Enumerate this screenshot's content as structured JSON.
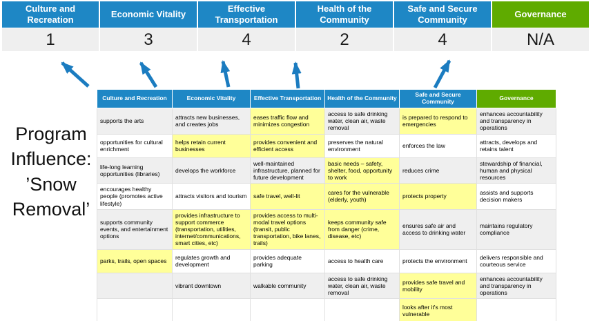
{
  "title": "Program Influence: ’Snow Removal’",
  "colors": {
    "header_blue": "#1E87C5",
    "governance_green": "#5FAB00",
    "score_row_gray": "#EFEFEF",
    "highlight_yellow": "#FFFF99",
    "arrow_blue": "#1B7CC0"
  },
  "summary": {
    "columns": [
      {
        "label": "Culture and Recreation",
        "score": "1",
        "header_bg": "#1E87C5"
      },
      {
        "label": "Economic Vitality",
        "score": "3",
        "header_bg": "#1E87C5"
      },
      {
        "label": "Effective Transportation",
        "score": "4",
        "header_bg": "#1E87C5"
      },
      {
        "label": "Health of the Community",
        "score": "2",
        "header_bg": "#1E87C5"
      },
      {
        "label": "Safe and Secure Community",
        "score": "4",
        "header_bg": "#1E87C5"
      },
      {
        "label": "Governance",
        "score": "N/A",
        "header_bg": "#5FAB00"
      }
    ]
  },
  "matrix": {
    "headers": [
      {
        "label": "Culture and Recreation",
        "bg": "#1E87C5"
      },
      {
        "label": "Economic Vitality",
        "bg": "#1E87C5"
      },
      {
        "label": "Effective Transportation",
        "bg": "#1E87C5"
      },
      {
        "label": "Health of the Community",
        "bg": "#1E87C5"
      },
      {
        "label": "Safe and Secure Community",
        "bg": "#1E87C5"
      },
      {
        "label": "Governance",
        "bg": "#5FAB00"
      }
    ],
    "rows": [
      [
        {
          "text": "supports the arts",
          "highlight": false
        },
        {
          "text": "attracts new businesses, and creates jobs",
          "highlight": false
        },
        {
          "text": "eases traffic flow and minimizes congestion",
          "highlight": true
        },
        {
          "text": "access to safe drinking water, clean air, waste removal",
          "highlight": false
        },
        {
          "text": "is prepared to respond to emergencies",
          "highlight": true
        },
        {
          "text": "enhances accountability and transparency in operations",
          "highlight": false
        }
      ],
      [
        {
          "text": "opportunities for cultural enrichment",
          "highlight": false
        },
        {
          "text": "helps retain current businesses",
          "highlight": true
        },
        {
          "text": "provides convenient and efficient access",
          "highlight": true
        },
        {
          "text": "preserves the natural environment",
          "highlight": false
        },
        {
          "text": "enforces the law",
          "highlight": false
        },
        {
          "text": "attracts, develops and retains talent",
          "highlight": false
        }
      ],
      [
        {
          "text": "life-long learning opportunities (libraries)",
          "highlight": false
        },
        {
          "text": "develops the workforce",
          "highlight": false
        },
        {
          "text": "well-maintained infrastructure, planned for future development",
          "highlight": false
        },
        {
          "text": "basic needs – safety, shelter, food, opportunity to work",
          "highlight": true
        },
        {
          "text": "reduces crime",
          "highlight": false
        },
        {
          "text": "stewardship of financial, human and physical resources",
          "highlight": false
        }
      ],
      [
        {
          "text": "encourages healthy people (promotes active lifestyle)",
          "highlight": false
        },
        {
          "text": "attracts visitors and tourism",
          "highlight": false
        },
        {
          "text": "safe travel, well-lit",
          "highlight": true
        },
        {
          "text": "cares for the vulnerable (elderly, youth)",
          "highlight": true
        },
        {
          "text": "protects property",
          "highlight": true
        },
        {
          "text": "assists and supports decision makers",
          "highlight": false
        }
      ],
      [
        {
          "text": "supports community events, and entertainment options",
          "highlight": false
        },
        {
          "text": "provides infrastructure to support commerce (transportation, utilities, internet/communications, smart cities, etc)",
          "highlight": true
        },
        {
          "text": "provides access to multi-modal travel options (transit, public transportation, bike lanes, trails)",
          "highlight": true
        },
        {
          "text": "keeps community safe from danger (crime, disease, etc)",
          "highlight": true
        },
        {
          "text": "ensures safe air and access to drinking water",
          "highlight": false
        },
        {
          "text": "maintains regulatory compliance",
          "highlight": false
        }
      ],
      [
        {
          "text": "parks, trails, open spaces",
          "highlight": true
        },
        {
          "text": "regulates growth and development",
          "highlight": false
        },
        {
          "text": "provides adequate parking",
          "highlight": false
        },
        {
          "text": "access to health care",
          "highlight": false
        },
        {
          "text": "protects the environment",
          "highlight": false
        },
        {
          "text": "delivers responsible and courteous service",
          "highlight": false
        }
      ],
      [
        {
          "text": "",
          "highlight": false
        },
        {
          "text": "vibrant downtown",
          "highlight": false
        },
        {
          "text": "walkable community",
          "highlight": false
        },
        {
          "text": "access to safe drinking water, clean air, waste removal",
          "highlight": false
        },
        {
          "text": "provides safe travel and mobility",
          "highlight": true
        },
        {
          "text": "enhances accountability and transparency in operations",
          "highlight": false
        }
      ],
      [
        {
          "text": "",
          "highlight": false
        },
        {
          "text": "",
          "highlight": false
        },
        {
          "text": "",
          "highlight": false
        },
        {
          "text": "",
          "highlight": false
        },
        {
          "text": "looks after it's most vulnerable",
          "highlight": true
        },
        {
          "text": "",
          "highlight": false
        }
      ]
    ]
  }
}
